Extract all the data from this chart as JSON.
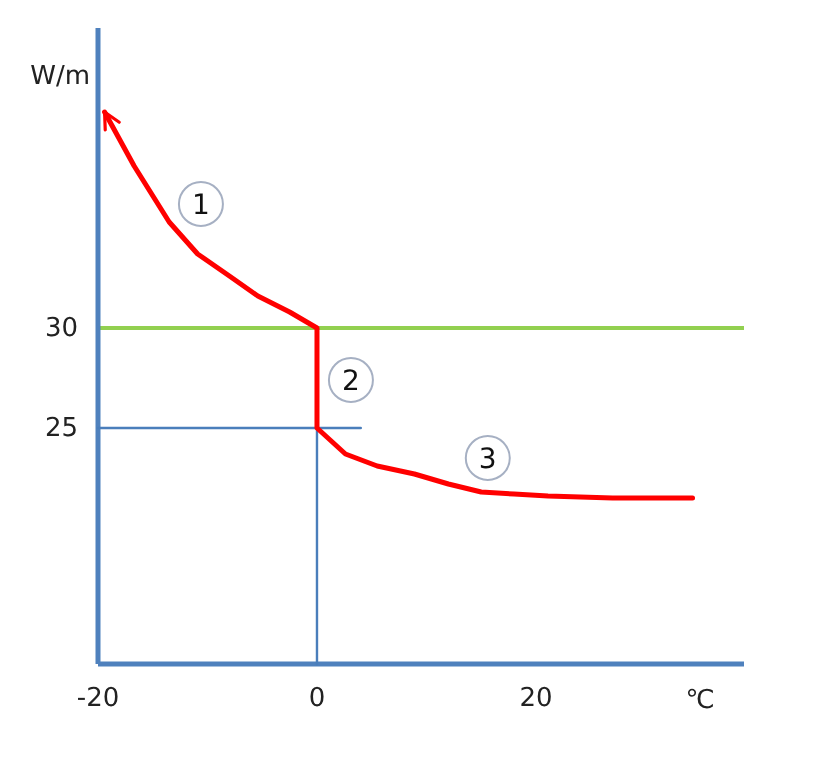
{
  "chart_data": {
    "type": "line",
    "xlabel": "℃",
    "ylabel": "W/m",
    "xlim": [
      -20,
      39
    ],
    "ylim": [
      13.2,
      45
    ],
    "xticks": [
      -20,
      0,
      20
    ],
    "yticks": [
      25,
      30
    ],
    "grid": false,
    "marker": "none",
    "line_style": "solid",
    "series": [
      {
        "color": "#ff0000",
        "x": [
          -19.4,
          -16.7,
          -13.5,
          -10.9,
          -8,
          -5.4,
          -2.5,
          0,
          0,
          1.2,
          2.6,
          5.5,
          8.9,
          12,
          15,
          18,
          21.1,
          27,
          34.3
        ],
        "values": [
          40.8,
          38.1,
          35.3,
          33.7,
          32.6,
          31.6,
          30.8,
          30,
          25,
          24.4,
          23.7,
          23.1,
          22.7,
          22.2,
          21.8,
          21.7,
          21.6,
          21.5,
          21.5
        ]
      },
      {
        "color": "#4a7ebb",
        "x": [
          -20,
          4
        ],
        "values": [
          25,
          25
        ]
      },
      {
        "color": "#4a7ebb",
        "x": [
          0,
          0
        ],
        "values": [
          25,
          13.2
        ]
      }
    ],
    "ref_lines": [
      {
        "axis": "y",
        "value": 30,
        "color": "#92d050"
      }
    ],
    "annotations": [
      {
        "text": "1",
        "x": -10.6,
        "y": 36.2
      },
      {
        "text": "2",
        "x": 3.1,
        "y": 27.4
      },
      {
        "text": "3",
        "x": 15.6,
        "y": 23.5
      }
    ]
  }
}
